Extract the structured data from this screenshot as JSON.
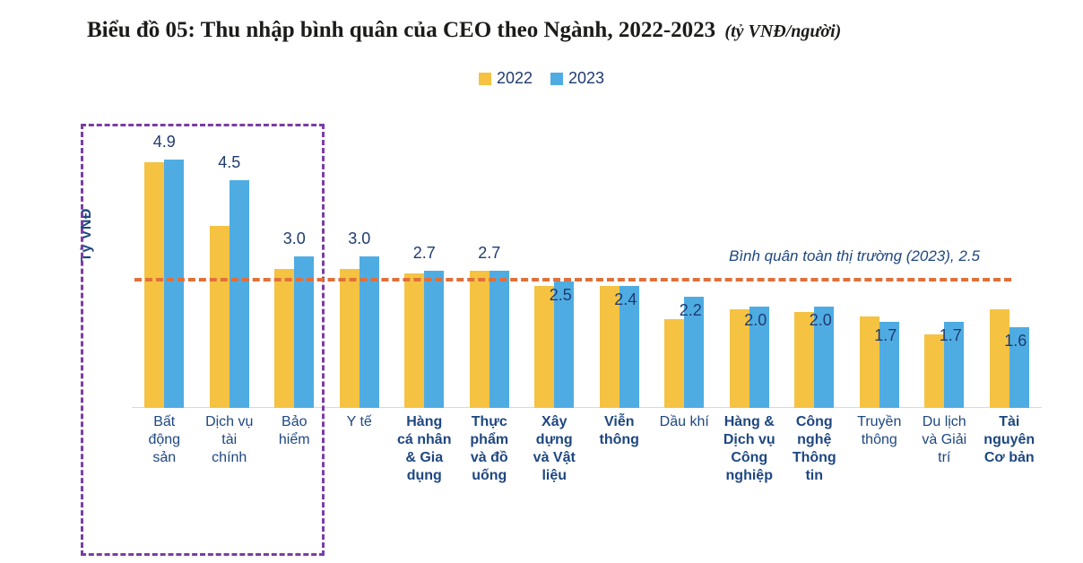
{
  "title": {
    "text": "Biểu đồ 05: Thu nhập bình quân của CEO theo Ngành, 2022-2023",
    "suffix": "(tỷ VNĐ/người)"
  },
  "legend": {
    "items": [
      {
        "label": "2022",
        "color": "#F5C242"
      },
      {
        "label": "2023",
        "color": "#4FACE3"
      }
    ]
  },
  "y_axis": {
    "label": "Tỷ VNĐ"
  },
  "reference_line": {
    "label": "Bình quân toàn thị trường (2023), 2.5",
    "value": 2.5,
    "color": "#E0703A"
  },
  "highlight_box": {
    "color": "#7B3DA5",
    "categories": [
      "Bất động sản",
      "Dịch vụ tài chính",
      "Bảo hiểm"
    ]
  },
  "chart_data": {
    "type": "bar",
    "title": "Thu nhập bình quân của CEO theo Ngành, 2022-2023",
    "unit": "tỷ VNĐ/người",
    "ylabel": "Tỷ VNĐ",
    "ylim": [
      0,
      5.3
    ],
    "grid": false,
    "legend_position": "top-center",
    "categories": [
      "Bất động sản",
      "Dịch vụ tài chính",
      "Bảo hiểm",
      "Y tế",
      "Hàng cá nhân & Gia dụng",
      "Thực phẩm và đồ uống",
      "Xây dựng và Vật liệu",
      "Viễn thông",
      "Dầu khí",
      "Hàng & Dịch vụ Công nghiệp",
      "Công nghệ Thông tin",
      "Truyền thông",
      "Du lịch và Giải trí",
      "Tài nguyên Cơ bản"
    ],
    "x_labels": [
      {
        "lines": [
          "Bất",
          "động",
          "sản"
        ],
        "bold": false
      },
      {
        "lines": [
          "Dịch vụ",
          "tài",
          "chính"
        ],
        "bold": false
      },
      {
        "lines": [
          "Bảo",
          "hiểm"
        ],
        "bold": false
      },
      {
        "lines": [
          "Y tế"
        ],
        "bold": false
      },
      {
        "lines": [
          "Hàng",
          "cá nhân",
          "& Gia",
          "dụng"
        ],
        "bold": true
      },
      {
        "lines": [
          "Thực",
          "phẩm",
          "và đồ",
          "uống"
        ],
        "bold": true
      },
      {
        "lines": [
          "Xây",
          "dựng",
          "và Vật",
          "liệu"
        ],
        "bold": true
      },
      {
        "lines": [
          "Viễn",
          "thông"
        ],
        "bold": true
      },
      {
        "lines": [
          "Dầu khí"
        ],
        "bold": false
      },
      {
        "lines": [
          "Hàng &",
          "Dịch vụ",
          "Công",
          "nghiệp"
        ],
        "bold": true
      },
      {
        "lines": [
          "Công",
          "nghệ",
          "Thông",
          "tin"
        ],
        "bold": true
      },
      {
        "lines": [
          "Truyền",
          "thông"
        ],
        "bold": false
      },
      {
        "lines": [
          "Du lịch",
          "và Giải",
          "trí"
        ],
        "bold": false
      },
      {
        "lines": [
          "Tài",
          "nguyên",
          "Cơ bản"
        ],
        "bold": true
      }
    ],
    "series": [
      {
        "name": "2022",
        "color": "#F5C242",
        "values": [
          4.85,
          3.6,
          2.75,
          2.75,
          2.65,
          2.7,
          2.4,
          2.4,
          1.75,
          1.95,
          1.9,
          1.8,
          1.45,
          1.95
        ]
      },
      {
        "name": "2023",
        "color": "#4FACE3",
        "values": [
          4.9,
          4.5,
          3.0,
          3.0,
          2.7,
          2.7,
          2.5,
          2.4,
          2.2,
          2.0,
          2.0,
          1.7,
          1.7,
          1.6
        ]
      }
    ],
    "value_labels": {
      "series": "2023",
      "values": [
        "4.9",
        "4.5",
        "3.0",
        "3.0",
        "2.7",
        "2.7",
        "2.5",
        "2.4",
        "2.2",
        "2.0",
        "2.0",
        "1.7",
        "1.7",
        "1.6"
      ]
    },
    "reference_line": {
      "value": 2.5,
      "label": "Bình quân toàn thị trường (2023), 2.5"
    }
  },
  "colors": {
    "bar_2022": "#F5C242",
    "bar_2023": "#4FACE3",
    "reference_line": "#E0703A",
    "highlight_box": "#7B3DA5",
    "value_text": "#1F3B70",
    "axis_label_text": "#1E4781",
    "baseline": "#D9D9D9",
    "title_text": "#1B1B19"
  }
}
